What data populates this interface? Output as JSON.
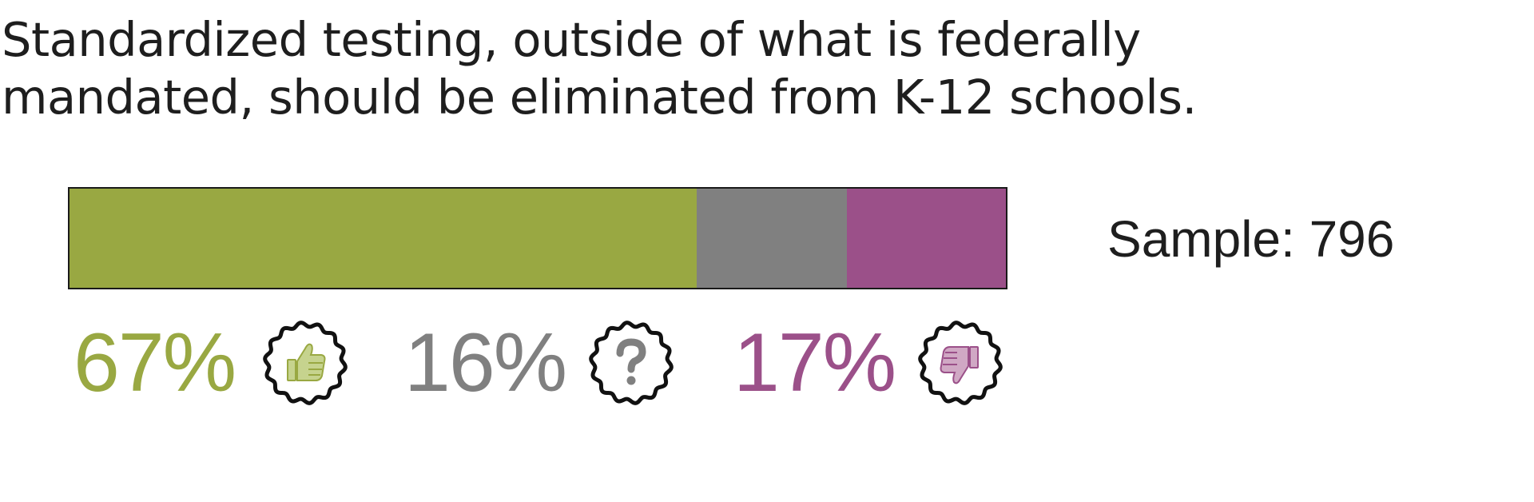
{
  "question": {
    "line1": "Standardized testing, outside of what is federally",
    "line2": "mandated, should be eliminated from K-12 schools."
  },
  "sample_text": "Sample: 796",
  "colors": {
    "agree": "#99a842",
    "neutral": "#808080",
    "disagree": "#9b5089"
  },
  "icons": {
    "agree": "thumbs-up-icon",
    "neutral": "question-mark-icon",
    "disagree": "thumbs-down-icon"
  },
  "chart_data": {
    "type": "bar",
    "stacked": true,
    "orientation": "horizontal",
    "categories": [
      "Agree",
      "Neutral",
      "Disagree"
    ],
    "values": [
      67,
      16,
      17
    ],
    "labels": [
      "67%",
      "16%",
      "17%"
    ],
    "sample": 796
  }
}
